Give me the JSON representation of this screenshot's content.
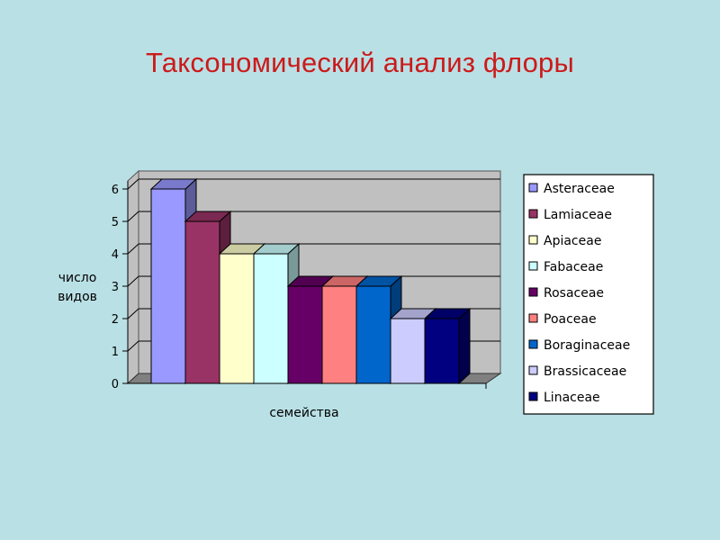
{
  "slide": {
    "title": "Таксономический анализ флоры"
  },
  "chart_data": {
    "type": "bar",
    "title": "",
    "xlabel": "семейства",
    "ylabel_lines": [
      "число",
      "видов"
    ],
    "ylim": [
      0,
      6
    ],
    "yticks": [
      "0",
      "1",
      "2",
      "3",
      "4",
      "5",
      "6"
    ],
    "grid": true,
    "legend_position": "right",
    "three_d": true,
    "series": [
      {
        "name": "Asteraceae",
        "value": 6,
        "color": "#9999ff"
      },
      {
        "name": "Lamiaceae",
        "value": 5,
        "color": "#993366"
      },
      {
        "name": "Apiaceae",
        "value": 4,
        "color": "#ffffcc"
      },
      {
        "name": "Fabaceae",
        "value": 4,
        "color": "#ccffff"
      },
      {
        "name": "Rosaceae",
        "value": 3,
        "color": "#660066"
      },
      {
        "name": "Poaceae",
        "value": 3,
        "color": "#ff8080"
      },
      {
        "name": "Boraginaceae",
        "value": 3,
        "color": "#0066cc"
      },
      {
        "name": "Brassicaceae",
        "value": 2,
        "color": "#ccccff"
      },
      {
        "name": "Linaceae",
        "value": 2,
        "color": "#000080"
      }
    ],
    "wall_color": "#c0c0c0",
    "floor_color": "#808080"
  }
}
